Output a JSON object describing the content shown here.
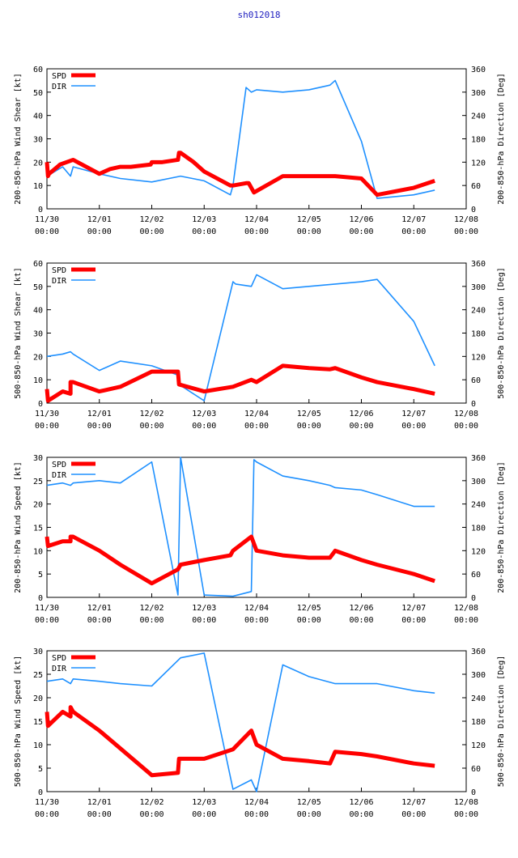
{
  "title": "sh012018",
  "colors": {
    "spd": "#ff0000",
    "dir": "#1e90ff",
    "axis": "#000000",
    "title": "#2020c0"
  },
  "x_ticks": [
    {
      "x": 0,
      "date": "11/30",
      "time": "00:00"
    },
    {
      "x": 1,
      "date": "12/01",
      "time": "00:00"
    },
    {
      "x": 2,
      "date": "12/02",
      "time": "00:00"
    },
    {
      "x": 3,
      "date": "12/03",
      "time": "00:00"
    },
    {
      "x": 4,
      "date": "12/04",
      "time": "00:00"
    },
    {
      "x": 5,
      "date": "12/05",
      "time": "00:00"
    },
    {
      "x": 6,
      "date": "12/06",
      "time": "00:00"
    },
    {
      "x": 7,
      "date": "12/07",
      "time": "00:00"
    },
    {
      "x": 8,
      "date": "12/08",
      "time": "00:00"
    }
  ],
  "chart_data": [
    {
      "type": "line",
      "ylabel": "200-850-hPa Wind Shear [kt]",
      "y2label": "200-850-hPa Direction [Deg]",
      "xlim": [
        0,
        8
      ],
      "ylim": [
        0,
        60
      ],
      "y2lim": [
        0,
        360
      ],
      "yticks": [
        0,
        10,
        20,
        30,
        40,
        50,
        60
      ],
      "y2ticks": [
        0,
        60,
        120,
        180,
        240,
        300,
        360
      ],
      "legend": [
        "SPD",
        "DIR"
      ],
      "spd": {
        "name": "SPD",
        "x": [
          0,
          0.02,
          0.02,
          0.04,
          0.2,
          0.25,
          0.5,
          1.0,
          1.2,
          1.4,
          1.6,
          1.98,
          2.0,
          2.2,
          2.5,
          2.52,
          2.55,
          2.8,
          3.0,
          3.5,
          3.55,
          3.8,
          3.85,
          3.95,
          4.5,
          5.0,
          5.5,
          6.0,
          6.3,
          7.0,
          7.4
        ],
        "y": [
          20,
          14,
          14,
          15,
          18,
          19,
          21,
          15,
          17,
          18,
          18,
          19,
          20,
          20,
          21,
          24,
          24,
          20,
          16,
          10,
          10,
          11,
          11,
          7,
          14,
          14,
          14,
          13,
          6,
          9,
          12
        ]
      },
      "dir": {
        "name": "DIR",
        "x": [
          0,
          0.3,
          0.45,
          0.5,
          1.0,
          1.4,
          2.0,
          2.55,
          3.0,
          3.5,
          3.55,
          3.8,
          3.9,
          4.0,
          4.5,
          5.0,
          5.4,
          5.5,
          6.0,
          6.3,
          7.0,
          7.4
        ],
        "y": [
          84,
          108,
          84,
          108,
          90,
          78,
          69,
          84,
          72,
          36,
          60,
          312,
          300,
          306,
          300,
          306,
          318,
          330,
          174,
          27,
          36,
          48
        ]
      }
    },
    {
      "type": "line",
      "ylabel": "500-850-hPa Wind Shear [kt]",
      "y2label": "500-850-hPa Direction [Deg]",
      "xlim": [
        0,
        8
      ],
      "ylim": [
        0,
        60
      ],
      "y2lim": [
        0,
        360
      ],
      "yticks": [
        0,
        10,
        20,
        30,
        40,
        50,
        60
      ],
      "y2ticks": [
        0,
        60,
        120,
        180,
        240,
        300,
        360
      ],
      "legend": [
        "SPD",
        "DIR"
      ],
      "spd": {
        "name": "SPD",
        "x": [
          0,
          0.02,
          0.02,
          0.3,
          0.45,
          0.45,
          0.5,
          1.0,
          1.4,
          2.0,
          2.5,
          2.52,
          3.0,
          3.55,
          3.9,
          4.0,
          4.5,
          5.0,
          5.4,
          5.5,
          6.0,
          6.3,
          7.0,
          7.4
        ],
        "y": [
          6,
          1,
          1,
          5,
          4,
          9,
          9,
          5,
          7,
          13.5,
          13.5,
          8,
          5,
          7,
          10,
          9,
          16,
          15,
          14.5,
          15,
          11,
          9,
          6,
          4
        ]
      },
      "dir": {
        "name": "DIR",
        "x": [
          0,
          0.3,
          0.45,
          0.5,
          1.0,
          1.4,
          2.0,
          2.5,
          2.52,
          3.0,
          3.55,
          3.6,
          3.9,
          4.0,
          4.5,
          5.0,
          5.5,
          6.0,
          6.3,
          7.0,
          7.4
        ],
        "y": [
          120,
          126,
          132,
          126,
          84,
          108,
          96,
          72,
          48,
          6,
          312,
          306,
          300,
          330,
          294,
          300,
          306,
          312,
          318,
          210,
          96
        ]
      }
    },
    {
      "type": "line",
      "ylabel": "200-850-hPa Wind Speed [kt]",
      "y2label": "200-850-hPa Direction [Deg]",
      "xlim": [
        0,
        8
      ],
      "ylim": [
        0,
        30
      ],
      "y2lim": [
        0,
        360
      ],
      "yticks": [
        0,
        5,
        10,
        15,
        20,
        25,
        30
      ],
      "y2ticks": [
        0,
        60,
        120,
        180,
        240,
        300,
        360
      ],
      "legend": [
        "SPD",
        "DIR"
      ],
      "spd": {
        "name": "SPD",
        "x": [
          0,
          0.02,
          0.02,
          0.3,
          0.45,
          0.45,
          0.5,
          1.0,
          1.4,
          2.0,
          2.5,
          2.55,
          3.0,
          3.5,
          3.55,
          3.9,
          4.0,
          4.5,
          5.0,
          5.4,
          5.5,
          6.0,
          6.3,
          7.0,
          7.4
        ],
        "y": [
          13,
          11,
          11,
          12,
          12,
          13,
          13,
          10,
          7,
          3,
          6,
          7,
          8,
          9,
          10,
          13,
          10,
          9,
          8.5,
          8.5,
          10,
          8,
          7,
          5,
          3.5
        ]
      },
      "dir": {
        "name": "DIR",
        "x": [
          0,
          0.3,
          0.45,
          0.5,
          1.0,
          1.4,
          2.0,
          2.5,
          2.55,
          3.0,
          3.55,
          3.9,
          3.95,
          4.0,
          4.5,
          5.0,
          5.4,
          5.5,
          6.0,
          6.3,
          7.0,
          7.4
        ],
        "y": [
          288,
          294,
          288,
          294,
          300,
          294,
          348,
          6,
          360,
          6,
          3,
          15,
          354,
          348,
          312,
          300,
          288,
          282,
          276,
          264,
          234,
          234
        ]
      }
    },
    {
      "type": "line",
      "ylabel": "500-850-hPa Wind Speed [kt]",
      "y2label": "500-850-hPa Direction [Deg]",
      "xlim": [
        0,
        8
      ],
      "ylim": [
        0,
        30
      ],
      "y2lim": [
        0,
        360
      ],
      "yticks": [
        0,
        5,
        10,
        15,
        20,
        25,
        30
      ],
      "y2ticks": [
        0,
        60,
        120,
        180,
        240,
        300,
        360
      ],
      "legend": [
        "SPD",
        "DIR"
      ],
      "spd": {
        "name": "SPD",
        "x": [
          0,
          0.02,
          0.02,
          0.3,
          0.45,
          0.45,
          0.5,
          1.0,
          2.0,
          2.5,
          2.52,
          3.0,
          3.55,
          3.9,
          4.0,
          4.5,
          5.0,
          5.4,
          5.5,
          6.0,
          6.3,
          7.0,
          7.4
        ],
        "y": [
          17,
          14,
          14,
          17,
          16,
          18,
          17,
          13,
          3.5,
          4,
          7,
          7,
          9,
          13,
          10,
          7,
          6.5,
          6,
          8.5,
          8,
          7.5,
          6,
          5.5
        ]
      },
      "dir": {
        "name": "DIR",
        "x": [
          0,
          0.3,
          0.45,
          0.5,
          1.0,
          1.4,
          2.0,
          2.55,
          3.0,
          3.55,
          3.9,
          4.0,
          4.5,
          5.0,
          5.5,
          6.0,
          6.3,
          7.0,
          7.4
        ],
        "y": [
          282,
          288,
          276,
          288,
          282,
          276,
          270,
          342,
          354,
          6,
          30,
          0,
          324,
          294,
          276,
          276,
          276,
          258,
          252
        ]
      }
    }
  ]
}
